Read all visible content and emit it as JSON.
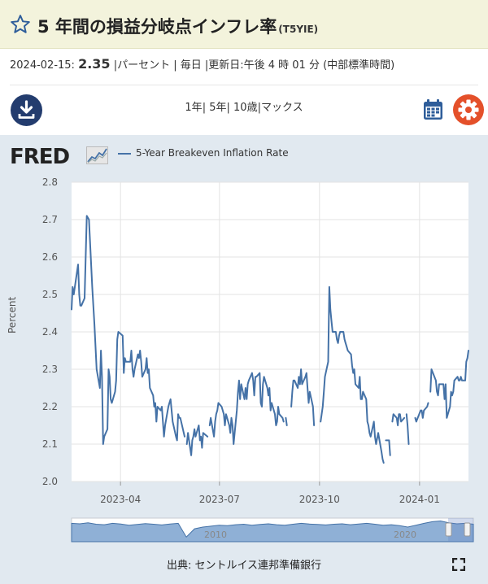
{
  "header": {
    "title": "5 年間の損益分岐点インフレ率",
    "series_code": "(T5YIE)"
  },
  "info": {
    "date": "2024-02-15:",
    "value": "2.35",
    "meta": "|パーセント | 毎日 |更新日:午後 4 時 01 分 (中部標準時間)"
  },
  "ranges": {
    "r1": "1年",
    "sep1": "|",
    "r2": "5年",
    "sep2": "|",
    "r3": "10歳",
    "sep3": "|",
    "r4": "マックス"
  },
  "logo": {
    "text": "FRED"
  },
  "legend": {
    "series_label": "5-Year Breakeven Inflation Rate"
  },
  "source": {
    "text": "出典: セントルイス連邦準備銀行"
  },
  "colors": {
    "accent": "#4572a7",
    "header_bg": "#f3f3dc",
    "panel_bg": "#e1e9f0",
    "download": "#233c6e",
    "settings": "#e4502a",
    "calendar": "#2e5d9a"
  },
  "icons": {
    "favorite": "star-icon",
    "download": "download-icon",
    "calendar": "calendar-icon",
    "settings": "gear-icon",
    "fullscreen": "fullscreen-icon"
  },
  "navigator": {
    "tick_labels": [
      "2010",
      "2020"
    ]
  },
  "chart_data": {
    "type": "line",
    "ylabel": "Percent",
    "ylim": [
      2.0,
      2.8
    ],
    "yticks": [
      "2.0",
      "2.1",
      "2.2",
      "2.3",
      "2.4",
      "2.5",
      "2.6",
      "2.7",
      "2.8"
    ],
    "xlim": [
      "2023-02-15",
      "2024-02-15"
    ],
    "xticks": [
      "2023-04",
      "2023-07",
      "2023-10",
      "2024-01"
    ],
    "grid": true,
    "series": [
      {
        "name": "5-Year Breakeven Inflation Rate",
        "segments": [
          [
            [
              "2023-02-15",
              2.46
            ],
            [
              "2023-02-16",
              2.52
            ],
            [
              "2023-02-17",
              2.5
            ],
            [
              "2023-02-21",
              2.58
            ],
            [
              "2023-02-22",
              2.5
            ],
            [
              "2023-02-23",
              2.47
            ],
            [
              "2023-02-24",
              2.47
            ],
            [
              "2023-02-27",
              2.49
            ],
            [
              "2023-03-01",
              2.71
            ],
            [
              "2023-03-03",
              2.7
            ],
            [
              "2023-03-06",
              2.52
            ],
            [
              "2023-03-08",
              2.42
            ],
            [
              "2023-03-10",
              2.3
            ],
            [
              "2023-03-13",
              2.25
            ],
            [
              "2023-03-14",
              2.35
            ],
            [
              "2023-03-15",
              2.28
            ],
            [
              "2023-03-16",
              2.1
            ],
            [
              "2023-03-17",
              2.12
            ],
            [
              "2023-03-20",
              2.14
            ],
            [
              "2023-03-21",
              2.3
            ],
            [
              "2023-03-22",
              2.28
            ],
            [
              "2023-03-23",
              2.22
            ],
            [
              "2023-03-24",
              2.21
            ],
            [
              "2023-03-27",
              2.24
            ],
            [
              "2023-03-28",
              2.27
            ],
            [
              "2023-03-29",
              2.38
            ],
            [
              "2023-03-30",
              2.4
            ],
            [
              "2023-04-03",
              2.39
            ],
            [
              "2023-04-04",
              2.29
            ],
            [
              "2023-04-05",
              2.33
            ],
            [
              "2023-04-06",
              2.32
            ],
            [
              "2023-04-10",
              2.32
            ],
            [
              "2023-04-11",
              2.35
            ],
            [
              "2023-04-12",
              2.3
            ],
            [
              "2023-04-13",
              2.28
            ],
            [
              "2023-04-14",
              2.3
            ],
            [
              "2023-04-17",
              2.34
            ],
            [
              "2023-04-18",
              2.33
            ],
            [
              "2023-04-19",
              2.35
            ],
            [
              "2023-04-20",
              2.32
            ],
            [
              "2023-04-21",
              2.28
            ],
            [
              "2023-04-24",
              2.3
            ],
            [
              "2023-04-25",
              2.33
            ],
            [
              "2023-04-26",
              2.29
            ],
            [
              "2023-04-27",
              2.3
            ],
            [
              "2023-04-28",
              2.25
            ],
            [
              "2023-05-01",
              2.23
            ],
            [
              "2023-05-02",
              2.2
            ],
            [
              "2023-05-03",
              2.21
            ],
            [
              "2023-05-04",
              2.16
            ],
            [
              "2023-05-05",
              2.2
            ],
            [
              "2023-05-08",
              2.19
            ],
            [
              "2023-05-09",
              2.2
            ],
            [
              "2023-05-10",
              2.16
            ],
            [
              "2023-05-11",
              2.12
            ],
            [
              "2023-05-12",
              2.15
            ],
            [
              "2023-05-15",
              2.2
            ],
            [
              "2023-05-16",
              2.21
            ],
            [
              "2023-05-17",
              2.22
            ],
            [
              "2023-05-18",
              2.19
            ],
            [
              "2023-05-19",
              2.16
            ],
            [
              "2023-05-22",
              2.12
            ],
            [
              "2023-05-23",
              2.11
            ],
            [
              "2023-05-24",
              2.18
            ],
            [
              "2023-05-25",
              2.17
            ],
            [
              "2023-05-26",
              2.17
            ],
            [
              "2023-05-30",
              2.12
            ]
          ],
          [
            [
              "2023-06-01",
              2.1
            ],
            [
              "2023-06-02",
              2.13
            ],
            [
              "2023-06-05",
              2.07
            ],
            [
              "2023-06-06",
              2.11
            ],
            [
              "2023-06-07",
              2.12
            ],
            [
              "2023-06-08",
              2.14
            ],
            [
              "2023-06-09",
              2.12
            ],
            [
              "2023-06-12",
              2.15
            ],
            [
              "2023-06-13",
              2.11
            ],
            [
              "2023-06-14",
              2.12
            ],
            [
              "2023-06-15",
              2.09
            ],
            [
              "2023-06-16",
              2.13
            ],
            [
              "2023-06-20",
              2.12
            ]
          ],
          [
            [
              "2023-06-22",
              2.15
            ],
            [
              "2023-06-23",
              2.17
            ],
            [
              "2023-06-26",
              2.12
            ],
            [
              "2023-06-27",
              2.16
            ],
            [
              "2023-06-28",
              2.18
            ],
            [
              "2023-06-29",
              2.19
            ],
            [
              "2023-06-30",
              2.21
            ],
            [
              "2023-07-03",
              2.2
            ],
            [
              "2023-07-05",
              2.18
            ],
            [
              "2023-07-06",
              2.15
            ],
            [
              "2023-07-07",
              2.18
            ],
            [
              "2023-07-10",
              2.15
            ],
            [
              "2023-07-11",
              2.13
            ],
            [
              "2023-07-12",
              2.17
            ],
            [
              "2023-07-13",
              2.15
            ],
            [
              "2023-07-14",
              2.1
            ],
            [
              "2023-07-17",
              2.19
            ],
            [
              "2023-07-18",
              2.24
            ],
            [
              "2023-07-19",
              2.27
            ],
            [
              "2023-07-20",
              2.22
            ],
            [
              "2023-07-21",
              2.26
            ],
            [
              "2023-07-24",
              2.22
            ],
            [
              "2023-07-25",
              2.25
            ],
            [
              "2023-07-26",
              2.22
            ],
            [
              "2023-07-27",
              2.26
            ],
            [
              "2023-07-28",
              2.27
            ],
            [
              "2023-07-31",
              2.29
            ],
            [
              "2023-08-01",
              2.27
            ],
            [
              "2023-08-02",
              2.23
            ],
            [
              "2023-08-03",
              2.28
            ],
            [
              "2023-08-04",
              2.28
            ],
            [
              "2023-08-07",
              2.29
            ],
            [
              "2023-08-08",
              2.21
            ],
            [
              "2023-08-09",
              2.2
            ],
            [
              "2023-08-10",
              2.26
            ],
            [
              "2023-08-11",
              2.28
            ],
            [
              "2023-08-14",
              2.25
            ],
            [
              "2023-08-15",
              2.23
            ],
            [
              "2023-08-16",
              2.25
            ],
            [
              "2023-08-17",
              2.19
            ],
            [
              "2023-08-18",
              2.21
            ],
            [
              "2023-08-21",
              2.18
            ],
            [
              "2023-08-22",
              2.15
            ],
            [
              "2023-08-23",
              2.16
            ],
            [
              "2023-08-24",
              2.2
            ],
            [
              "2023-08-25",
              2.18
            ],
            [
              "2023-08-28",
              2.17
            ],
            [
              "2023-08-29",
              2.16
            ]
          ],
          [
            [
              "2023-08-31",
              2.17
            ],
            [
              "2023-09-01",
              2.15
            ]
          ],
          [
            [
              "2023-09-05",
              2.2
            ],
            [
              "2023-09-06",
              2.24
            ],
            [
              "2023-09-07",
              2.27
            ],
            [
              "2023-09-08",
              2.27
            ],
            [
              "2023-09-11",
              2.25
            ],
            [
              "2023-09-12",
              2.28
            ],
            [
              "2023-09-13",
              2.26
            ],
            [
              "2023-09-14",
              2.3
            ],
            [
              "2023-09-15",
              2.26
            ],
            [
              "2023-09-18",
              2.28
            ],
            [
              "2023-09-19",
              2.29
            ],
            [
              "2023-09-20",
              2.25
            ],
            [
              "2023-09-21",
              2.21
            ],
            [
              "2023-09-22",
              2.24
            ],
            [
              "2023-09-25",
              2.2
            ],
            [
              "2023-09-26",
              2.15
            ]
          ],
          [
            [
              "2023-10-02",
              2.16
            ],
            [
              "2023-10-03",
              2.18
            ],
            [
              "2023-10-04",
              2.2
            ],
            [
              "2023-10-05",
              2.24
            ],
            [
              "2023-10-06",
              2.28
            ],
            [
              "2023-10-09",
              2.32
            ],
            [
              "2023-10-10",
              2.52
            ],
            [
              "2023-10-11",
              2.46
            ],
            [
              "2023-10-12",
              2.43
            ],
            [
              "2023-10-13",
              2.4
            ],
            [
              "2023-10-16",
              2.4
            ],
            [
              "2023-10-17",
              2.38
            ],
            [
              "2023-10-18",
              2.37
            ],
            [
              "2023-10-19",
              2.39
            ],
            [
              "2023-10-20",
              2.4
            ],
            [
              "2023-10-23",
              2.4
            ],
            [
              "2023-10-24",
              2.38
            ],
            [
              "2023-10-25",
              2.37
            ],
            [
              "2023-10-26",
              2.36
            ],
            [
              "2023-10-27",
              2.35
            ],
            [
              "2023-10-30",
              2.34
            ],
            [
              "2023-10-31",
              2.31
            ],
            [
              "2023-11-01",
              2.29
            ],
            [
              "2023-11-02",
              2.3
            ],
            [
              "2023-11-03",
              2.26
            ],
            [
              "2023-11-06",
              2.25
            ],
            [
              "2023-11-07",
              2.28
            ],
            [
              "2023-11-08",
              2.22
            ],
            [
              "2023-11-09",
              2.22
            ],
            [
              "2023-11-10",
              2.24
            ],
            [
              "2023-11-13",
              2.22
            ],
            [
              "2023-11-14",
              2.16
            ],
            [
              "2023-11-15",
              2.15
            ],
            [
              "2023-11-16",
              2.13
            ],
            [
              "2023-11-17",
              2.12
            ],
            [
              "2023-11-20",
              2.16
            ],
            [
              "2023-11-21",
              2.12
            ],
            [
              "2023-11-22",
              2.1
            ],
            [
              "2023-11-24",
              2.13
            ],
            [
              "2023-11-27",
              2.08
            ],
            [
              "2023-11-28",
              2.06
            ],
            [
              "2023-11-29",
              2.05
            ]
          ],
          [
            [
              "2023-12-01",
              2.11
            ],
            [
              "2023-12-04",
              2.11
            ],
            [
              "2023-12-05",
              2.07
            ]
          ],
          [
            [
              "2023-12-07",
              2.16
            ],
            [
              "2023-12-08",
              2.18
            ],
            [
              "2023-12-11",
              2.17
            ],
            [
              "2023-12-12",
              2.15
            ],
            [
              "2023-12-13",
              2.18
            ],
            [
              "2023-12-14",
              2.18
            ],
            [
              "2023-12-15",
              2.16
            ],
            [
              "2023-12-18",
              2.17
            ]
          ],
          [
            [
              "2023-12-20",
              2.18
            ],
            [
              "2023-12-21",
              2.15
            ],
            [
              "2023-12-22",
              2.1
            ]
          ],
          [
            [
              "2023-12-28",
              2.17
            ],
            [
              "2023-12-29",
              2.16
            ],
            [
              "2024-01-02",
              2.19
            ],
            [
              "2024-01-03",
              2.19
            ],
            [
              "2024-01-04",
              2.17
            ],
            [
              "2024-01-05",
              2.19
            ],
            [
              "2024-01-08",
              2.2
            ],
            [
              "2024-01-09",
              2.21
            ]
          ],
          [
            [
              "2024-01-11",
              2.24
            ],
            [
              "2024-01-12",
              2.3
            ],
            [
              "2024-01-16",
              2.27
            ],
            [
              "2024-01-17",
              2.24
            ],
            [
              "2024-01-18",
              2.23
            ],
            [
              "2024-01-19",
              2.26
            ],
            [
              "2024-01-22",
              2.26
            ],
            [
              "2024-01-23",
              2.26
            ],
            [
              "2024-01-24",
              2.22
            ],
            [
              "2024-01-25",
              2.26
            ],
            [
              "2024-01-26",
              2.17
            ],
            [
              "2024-01-29",
              2.2
            ],
            [
              "2024-01-30",
              2.24
            ],
            [
              "2024-01-31",
              2.23
            ],
            [
              "2024-02-01",
              2.24
            ],
            [
              "2024-02-02",
              2.27
            ],
            [
              "2024-02-05",
              2.28
            ],
            [
              "2024-02-06",
              2.27
            ],
            [
              "2024-02-07",
              2.27
            ],
            [
              "2024-02-08",
              2.28
            ],
            [
              "2024-02-09",
              2.27
            ],
            [
              "2024-02-12",
              2.27
            ],
            [
              "2024-02-13",
              2.32
            ],
            [
              "2024-02-14",
              2.33
            ],
            [
              "2024-02-15",
              2.35
            ]
          ]
        ]
      }
    ]
  }
}
